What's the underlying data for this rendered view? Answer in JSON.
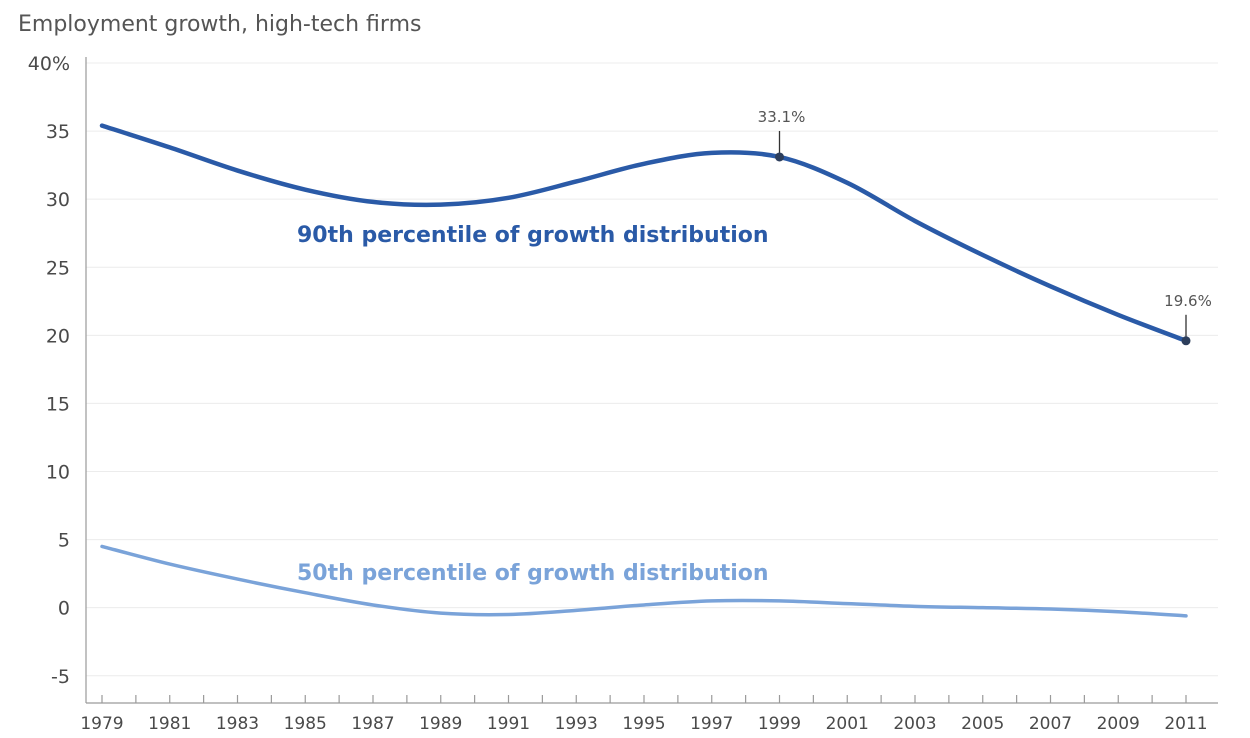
{
  "chart_data": {
    "type": "line",
    "title": "Employment growth, high-tech firms",
    "xlabel": "",
    "ylabel": "",
    "ylim": [
      -7,
      40
    ],
    "xlim": [
      1979,
      2011
    ],
    "y_ticks": [
      {
        "value": 40,
        "label": "40%"
      },
      {
        "value": 35,
        "label": "35"
      },
      {
        "value": 30,
        "label": "30"
      },
      {
        "value": 25,
        "label": "25"
      },
      {
        "value": 20,
        "label": "20"
      },
      {
        "value": 15,
        "label": "15"
      },
      {
        "value": 10,
        "label": "10"
      },
      {
        "value": 5,
        "label": "5"
      },
      {
        "value": 0,
        "label": "0"
      },
      {
        "value": -5,
        "label": "-5"
      }
    ],
    "x_ticks": [
      "1979",
      "1981",
      "1983",
      "1985",
      "1987",
      "1989",
      "1991",
      "1993",
      "1995",
      "1997",
      "1999",
      "2001",
      "2003",
      "2005",
      "2007",
      "2009",
      "2011"
    ],
    "grid": true,
    "series": [
      {
        "name": "90th percentile of growth distribution",
        "color": "#2a5aa7",
        "x": [
          1979,
          1981,
          1983,
          1985,
          1987,
          1989,
          1991,
          1993,
          1995,
          1997,
          1999,
          2001,
          2003,
          2005,
          2007,
          2009,
          2011
        ],
        "values": [
          35.4,
          33.8,
          32.1,
          30.7,
          29.8,
          29.6,
          30.1,
          31.3,
          32.6,
          33.4,
          33.1,
          31.2,
          28.4,
          25.9,
          23.6,
          21.5,
          19.6
        ]
      },
      {
        "name": "50th percentile of growth distribution",
        "color": "#7aa3d9",
        "x": [
          1979,
          1981,
          1983,
          1985,
          1987,
          1989,
          1991,
          1993,
          1995,
          1997,
          1999,
          2001,
          2003,
          2005,
          2007,
          2009,
          2011
        ],
        "values": [
          4.5,
          3.2,
          2.1,
          1.1,
          0.2,
          -0.4,
          -0.5,
          -0.2,
          0.2,
          0.5,
          0.5,
          0.3,
          0.1,
          0.0,
          -0.1,
          -0.3,
          -0.6
        ]
      }
    ],
    "annotations": [
      {
        "series": 0,
        "x": 1999,
        "y": 33.1,
        "text": "33.1%"
      },
      {
        "series": 0,
        "x": 2011,
        "y": 19.6,
        "text": "19.6%"
      }
    ]
  }
}
